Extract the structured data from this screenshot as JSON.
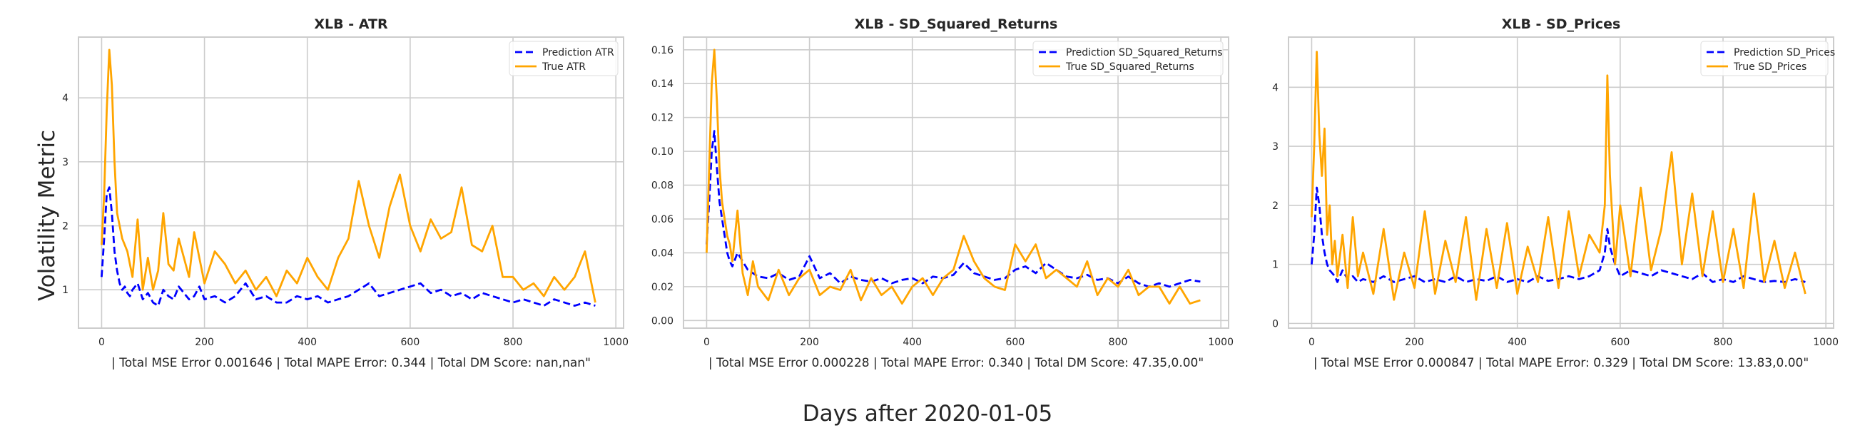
{
  "figure": {
    "ylabel": "Volatility Metric",
    "xlabel": "Days after 2020-01-05"
  },
  "chart_data": [
    {
      "type": "line",
      "title": "XLB - ATR",
      "xlabel": "| Total MSE Error 0.001646 | Total MAPE Error: 0.344 | Total DM Score: nan,nan\"",
      "xlim": [
        -45,
        1015
      ],
      "ylim": [
        0.4,
        4.95
      ],
      "xticks": [
        0,
        200,
        400,
        600,
        800,
        1000
      ],
      "yticks": [
        1,
        2,
        3,
        4
      ],
      "tick_format": "int",
      "grid": true,
      "legend": "top-right",
      "series": [
        {
          "name": "Prediction ATR",
          "style": "dashed",
          "color": "#0000ff",
          "x": [
            0,
            5,
            10,
            15,
            20,
            25,
            30,
            35,
            40,
            45,
            50,
            55,
            60,
            70,
            80,
            90,
            100,
            110,
            120,
            130,
            140,
            150,
            160,
            170,
            180,
            190,
            200,
            220,
            240,
            260,
            280,
            300,
            320,
            340,
            360,
            380,
            400,
            420,
            440,
            460,
            480,
            500,
            520,
            540,
            560,
            580,
            600,
            620,
            640,
            660,
            680,
            700,
            720,
            740,
            760,
            780,
            800,
            820,
            840,
            860,
            880,
            900,
            920,
            940,
            960
          ],
          "y": [
            1.2,
            1.8,
            2.5,
            2.6,
            2.2,
            1.6,
            1.3,
            1.1,
            1.0,
            1.05,
            0.95,
            0.9,
            1.0,
            1.1,
            0.85,
            0.95,
            0.8,
            0.75,
            1.0,
            0.9,
            0.85,
            1.05,
            0.95,
            0.85,
            0.9,
            1.05,
            0.85,
            0.9,
            0.8,
            0.9,
            1.1,
            0.85,
            0.9,
            0.8,
            0.8,
            0.9,
            0.85,
            0.9,
            0.8,
            0.85,
            0.9,
            1.0,
            1.1,
            0.9,
            0.95,
            1.0,
            1.05,
            1.1,
            0.95,
            1.0,
            0.9,
            0.95,
            0.85,
            0.95,
            0.9,
            0.85,
            0.8,
            0.85,
            0.8,
            0.75,
            0.85,
            0.8,
            0.75,
            0.8,
            0.75
          ]
        },
        {
          "name": "True ATR",
          "style": "solid",
          "color": "#ffa500",
          "x": [
            0,
            5,
            10,
            15,
            20,
            25,
            30,
            35,
            40,
            45,
            50,
            55,
            60,
            70,
            80,
            90,
            100,
            110,
            120,
            130,
            140,
            150,
            160,
            170,
            180,
            190,
            200,
            220,
            240,
            260,
            280,
            300,
            320,
            340,
            360,
            380,
            400,
            420,
            440,
            460,
            480,
            500,
            520,
            540,
            560,
            580,
            600,
            620,
            640,
            660,
            680,
            700,
            720,
            740,
            760,
            780,
            800,
            820,
            840,
            860,
            880,
            900,
            920,
            940,
            960
          ],
          "y": [
            1.7,
            2.5,
            3.8,
            4.75,
            4.2,
            3.0,
            2.2,
            2.0,
            1.8,
            1.7,
            1.6,
            1.4,
            1.2,
            2.1,
            1.0,
            1.5,
            1.0,
            1.3,
            2.2,
            1.4,
            1.3,
            1.8,
            1.5,
            1.2,
            1.9,
            1.5,
            1.1,
            1.6,
            1.4,
            1.1,
            1.3,
            1.0,
            1.2,
            0.9,
            1.3,
            1.1,
            1.5,
            1.2,
            1.0,
            1.5,
            1.8,
            2.7,
            2.0,
            1.5,
            2.3,
            2.8,
            2.0,
            1.6,
            2.1,
            1.8,
            1.9,
            2.6,
            1.7,
            1.6,
            2.0,
            1.2,
            1.2,
            1.0,
            1.1,
            0.9,
            1.2,
            1.0,
            1.2,
            1.6,
            0.8
          ]
        }
      ]
    },
    {
      "type": "line",
      "title": "XLB - SD_Squared_Returns",
      "xlabel": "| Total MSE Error 0.000228 | Total MAPE Error: 0.340 | Total DM Score: 47.35,0.00\"",
      "xlim": [
        -45,
        1015
      ],
      "ylim": [
        -0.0045,
        0.1675
      ],
      "xticks": [
        0,
        200,
        400,
        600,
        800,
        1000
      ],
      "yticks": [
        0.0,
        0.02,
        0.04,
        0.06,
        0.08,
        0.1,
        0.12,
        0.14,
        0.16
      ],
      "tick_format": "2dp",
      "grid": true,
      "legend": "top-right",
      "series": [
        {
          "name": "Prediction SD_Squared_Returns",
          "style": "dashed",
          "color": "#0000ff",
          "x": [
            0,
            5,
            10,
            15,
            20,
            25,
            30,
            35,
            40,
            45,
            50,
            60,
            70,
            80,
            90,
            100,
            120,
            140,
            160,
            180,
            200,
            220,
            240,
            260,
            280,
            300,
            320,
            340,
            360,
            380,
            400,
            420,
            440,
            460,
            480,
            500,
            520,
            540,
            560,
            580,
            600,
            620,
            640,
            660,
            680,
            700,
            720,
            740,
            760,
            780,
            800,
            820,
            840,
            860,
            880,
            900,
            920,
            940,
            960
          ],
          "y": [
            0.045,
            0.07,
            0.1,
            0.112,
            0.09,
            0.07,
            0.06,
            0.05,
            0.04,
            0.035,
            0.032,
            0.04,
            0.035,
            0.03,
            0.028,
            0.026,
            0.025,
            0.028,
            0.024,
            0.026,
            0.038,
            0.025,
            0.028,
            0.022,
            0.026,
            0.024,
            0.023,
            0.025,
            0.022,
            0.024,
            0.025,
            0.022,
            0.026,
            0.025,
            0.027,
            0.034,
            0.028,
            0.026,
            0.024,
            0.025,
            0.03,
            0.032,
            0.028,
            0.034,
            0.03,
            0.026,
            0.025,
            0.027,
            0.024,
            0.025,
            0.022,
            0.026,
            0.022,
            0.02,
            0.022,
            0.02,
            0.022,
            0.024,
            0.023
          ]
        },
        {
          "name": "True SD_Squared_Returns",
          "style": "solid",
          "color": "#ffa500",
          "x": [
            0,
            5,
            10,
            15,
            20,
            25,
            30,
            35,
            40,
            45,
            50,
            60,
            70,
            80,
            90,
            100,
            120,
            140,
            160,
            180,
            200,
            220,
            240,
            260,
            280,
            300,
            320,
            340,
            360,
            380,
            400,
            420,
            440,
            460,
            480,
            500,
            520,
            540,
            560,
            580,
            600,
            620,
            640,
            660,
            680,
            700,
            720,
            740,
            760,
            780,
            800,
            820,
            840,
            860,
            880,
            900,
            920,
            940,
            960
          ],
          "y": [
            0.04,
            0.09,
            0.14,
            0.16,
            0.13,
            0.09,
            0.07,
            0.06,
            0.05,
            0.045,
            0.035,
            0.065,
            0.028,
            0.015,
            0.035,
            0.02,
            0.012,
            0.03,
            0.015,
            0.025,
            0.03,
            0.015,
            0.02,
            0.018,
            0.03,
            0.012,
            0.025,
            0.015,
            0.02,
            0.01,
            0.02,
            0.025,
            0.015,
            0.025,
            0.03,
            0.05,
            0.035,
            0.025,
            0.02,
            0.018,
            0.045,
            0.035,
            0.045,
            0.025,
            0.03,
            0.025,
            0.02,
            0.035,
            0.015,
            0.025,
            0.02,
            0.03,
            0.015,
            0.02,
            0.02,
            0.01,
            0.02,
            0.01,
            0.012
          ]
        }
      ]
    },
    {
      "type": "line",
      "title": "XLB - SD_Prices",
      "xlabel": "| Total MSE Error 0.000847 | Total MAPE Error: 0.329 | Total DM Score: 13.83,0.00\"",
      "xlim": [
        -45,
        1015
      ],
      "ylim": [
        -0.08,
        4.85
      ],
      "xticks": [
        0,
        200,
        400,
        600,
        800,
        1000
      ],
      "yticks": [
        0,
        1,
        2,
        3,
        4
      ],
      "tick_format": "int",
      "grid": true,
      "legend": "top-right",
      "series": [
        {
          "name": "Prediction SD_Prices",
          "style": "dashed",
          "color": "#0000ff",
          "x": [
            0,
            5,
            10,
            15,
            20,
            25,
            30,
            35,
            40,
            45,
            50,
            60,
            70,
            80,
            90,
            100,
            120,
            140,
            160,
            180,
            200,
            220,
            240,
            260,
            280,
            300,
            320,
            340,
            360,
            380,
            400,
            420,
            440,
            460,
            480,
            500,
            520,
            540,
            560,
            570,
            575,
            580,
            590,
            600,
            620,
            640,
            660,
            680,
            700,
            720,
            740,
            760,
            780,
            800,
            820,
            840,
            860,
            880,
            900,
            920,
            940,
            960
          ],
          "y": [
            1.0,
            1.5,
            2.3,
            2.0,
            1.5,
            1.2,
            1.0,
            0.9,
            0.85,
            0.8,
            0.7,
            0.9,
            0.75,
            0.8,
            0.7,
            0.75,
            0.7,
            0.8,
            0.7,
            0.75,
            0.8,
            0.7,
            0.75,
            0.7,
            0.8,
            0.7,
            0.75,
            0.72,
            0.8,
            0.7,
            0.75,
            0.7,
            0.8,
            0.72,
            0.75,
            0.8,
            0.75,
            0.8,
            0.9,
            1.2,
            1.6,
            1.3,
            1.0,
            0.8,
            0.9,
            0.85,
            0.8,
            0.9,
            0.85,
            0.8,
            0.75,
            0.85,
            0.7,
            0.75,
            0.7,
            0.8,
            0.75,
            0.7,
            0.72,
            0.7,
            0.75,
            0.7
          ]
        },
        {
          "name": "True SD_Prices",
          "style": "solid",
          "color": "#ffa500",
          "x": [
            0,
            5,
            10,
            15,
            20,
            25,
            30,
            35,
            40,
            45,
            50,
            60,
            70,
            80,
            90,
            100,
            120,
            140,
            160,
            180,
            200,
            220,
            240,
            260,
            280,
            300,
            320,
            340,
            360,
            380,
            400,
            420,
            440,
            460,
            480,
            500,
            520,
            540,
            560,
            570,
            575,
            580,
            590,
            600,
            620,
            640,
            660,
            680,
            700,
            720,
            740,
            760,
            780,
            800,
            820,
            840,
            860,
            880,
            900,
            920,
            940,
            960
          ],
          "y": [
            1.8,
            3.0,
            4.6,
            3.2,
            2.5,
            3.3,
            1.5,
            2.0,
            1.0,
            1.4,
            0.8,
            1.5,
            0.6,
            1.8,
            0.8,
            1.2,
            0.5,
            1.6,
            0.4,
            1.2,
            0.6,
            1.9,
            0.5,
            1.4,
            0.7,
            1.8,
            0.4,
            1.6,
            0.6,
            1.7,
            0.5,
            1.3,
            0.7,
            1.8,
            0.6,
            1.9,
            0.8,
            1.5,
            1.2,
            2.0,
            4.2,
            2.5,
            1.0,
            2.0,
            0.8,
            2.3,
            0.9,
            1.6,
            2.9,
            1.0,
            2.2,
            0.8,
            1.9,
            0.7,
            1.6,
            0.6,
            2.2,
            0.7,
            1.4,
            0.6,
            1.2,
            0.5
          ]
        }
      ]
    }
  ]
}
